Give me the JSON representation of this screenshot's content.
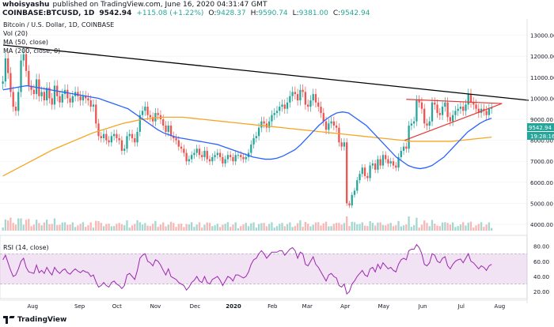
{
  "header": {
    "publisher": "whoisyashu",
    "published_text": "published on TradingView.com, June 16, 2020 04:31:47 GMT",
    "symbol": "COINBASE:BTCUSD, 1D",
    "price": "9542.94",
    "change": "+115.08 (+1.22%)",
    "open_label": "O:",
    "open": "9428.37",
    "high_label": "H:",
    "high": "9590.74",
    "low_label": "L:",
    "low": "9381.00",
    "close_label": "C:",
    "close": "9542.94"
  },
  "legend": {
    "title": "Bitcoin / U.S. Dollar, 1D, COINBASE",
    "vol": "Vol (20)",
    "ma50": "MA (50, close)",
    "ma200": "MA (200, close, 0)"
  },
  "price_tag": "9542.94",
  "time_tag": "19:28:16",
  "rsi_label": "RSI (14, close)",
  "footer": {
    "brand": "TradingView"
  },
  "colors": {
    "up": "#26a69a",
    "down": "#ef5350",
    "ma50": "#2962ff",
    "ma200": "#f5a623",
    "rsi": "#9c27b0",
    "rsi_band": "#e1bee7",
    "trend": "#000000",
    "triangle": "#e53935"
  },
  "chart_data": {
    "type": "line",
    "price_axis_ticks": [
      "13000.00",
      "12000.00",
      "11000.00",
      "10000.00",
      "9000.00",
      "8000.00",
      "7000.00",
      "6000.00",
      "5000.00",
      "4000.00"
    ],
    "rsi_axis_ticks": [
      "80.00",
      "60.00",
      "40.00",
      "20.00"
    ],
    "x_ticks": [
      "Aug",
      "Sep",
      "Oct",
      "Nov",
      "Dec",
      "2020",
      "Feb",
      "Mar",
      "Apr",
      "May",
      "Jun",
      "Jul",
      "Aug"
    ],
    "ylim": [
      3700,
      13700
    ],
    "rsi_ylim": [
      15,
      90
    ],
    "closes": [
      10800,
      11900,
      11200,
      10300,
      9600,
      9400,
      10300,
      11800,
      12100,
      11300,
      10600,
      10400,
      10200,
      10900,
      10100,
      10300,
      9900,
      10500,
      10000,
      9700,
      10600,
      10100,
      9800,
      10200,
      10400,
      10000,
      9800,
      10100,
      10300,
      10100,
      9900,
      10100,
      10000,
      9900,
      9600,
      9700,
      8800,
      8200,
      8100,
      8300,
      8000,
      7900,
      8200,
      8300,
      8100,
      8000,
      7500,
      7600,
      8200,
      8300,
      8100,
      7900,
      8400,
      9200,
      9400,
      9600,
      9200,
      9100,
      8900,
      9300,
      9200,
      9000,
      8700,
      8400,
      8700,
      8200,
      8100,
      8000,
      7700,
      7600,
      7400,
      7000,
      7100,
      7300,
      7400,
      7600,
      7300,
      7200,
      7500,
      7100,
      7000,
      7200,
      7300,
      7400,
      7200,
      6900,
      7100,
      7300,
      7200,
      7000,
      7300,
      7300,
      7200,
      7100,
      7200,
      7400,
      7800,
      8100,
      8200,
      8600,
      8900,
      8800,
      8600,
      8900,
      9200,
      9300,
      9400,
      9600,
      9700,
      9500,
      9800,
      10100,
      10300,
      10200,
      9900,
      10400,
      10300,
      9700,
      9600,
      9900,
      10200,
      9800,
      9600,
      9300,
      8900,
      8500,
      8800,
      8900,
      8700,
      8600,
      7900,
      7700,
      7900,
      5000,
      4900,
      5400,
      5600,
      6100,
      6400,
      6700,
      6300,
      6200,
      6800,
      6900,
      6600,
      7100,
      6800,
      7300,
      7100,
      6900,
      7000,
      6800,
      6700,
      7200,
      7500,
      7700,
      7600,
      8700,
      8800,
      8900,
      9900,
      9800,
      9500,
      8800,
      8700,
      8900,
      9800,
      9700,
      9300,
      9200,
      9600,
      9800,
      9100,
      8900,
      9200,
      9400,
      9500,
      9600,
      9400,
      9700,
      10200,
      9800,
      9700,
      9500,
      9300,
      9500,
      9400,
      9200,
      9500,
      9543
    ],
    "ma50": [
      10400,
      10450,
      10500,
      10550,
      10600,
      10550,
      10500,
      10450,
      10400,
      10350,
      10300,
      10250,
      10200,
      10150,
      10100,
      10050,
      10000,
      9900,
      9800,
      9700,
      9600,
      9500,
      9300,
      9100,
      8900,
      8700,
      8500,
      8350,
      8250,
      8150,
      8100,
      8050,
      8000,
      7950,
      7900,
      7850,
      7800,
      7700,
      7600,
      7500,
      7400,
      7300,
      7200,
      7150,
      7100,
      7100,
      7150,
      7250,
      7400,
      7550,
      7800,
      8100,
      8400,
      8700,
      8950,
      9150,
      9300,
      9350,
      9300,
      9100,
      8900,
      8700,
      8400,
      8100,
      7800,
      7500,
      7200,
      7000,
      6800,
      6700,
      6650,
      6700,
      6800,
      7000,
      7200,
      7500,
      7800,
      8100,
      8400,
      8600,
      8800,
      8950,
      9050
    ],
    "ma200": [
      6300,
      6550,
      6800,
      7050,
      7300,
      7550,
      7750,
      7950,
      8150,
      8350,
      8500,
      8650,
      8800,
      8900,
      9000,
      9050,
      9100,
      9100,
      9100,
      9050,
      9000,
      8950,
      8900,
      8850,
      8800,
      8750,
      8700,
      8650,
      8600,
      8550,
      8500,
      8450,
      8400,
      8350,
      8300,
      8250,
      8200,
      8150,
      8100,
      8050,
      8000,
      7950,
      7950,
      7950,
      7950,
      7950,
      8000,
      8050,
      8100,
      8150
    ],
    "rsi": [
      62,
      68,
      58,
      48,
      40,
      42,
      50,
      60,
      64,
      52,
      46,
      45,
      44,
      55,
      45,
      48,
      44,
      52,
      46,
      42,
      52,
      47,
      44,
      48,
      50,
      45,
      43,
      47,
      50,
      47,
      45,
      48,
      46,
      45,
      40,
      42,
      33,
      26,
      28,
      32,
      28,
      26,
      32,
      34,
      30,
      28,
      24,
      28,
      42,
      44,
      40,
      36,
      48,
      64,
      68,
      70,
      60,
      58,
      54,
      62,
      60,
      55,
      48,
      42,
      50,
      40,
      38,
      36,
      32,
      30,
      28,
      22,
      26,
      32,
      35,
      40,
      34,
      32,
      40,
      32,
      30,
      36,
      38,
      40,
      35,
      28,
      34,
      40,
      38,
      34,
      42,
      42,
      40,
      38,
      40,
      46,
      56,
      62,
      64,
      70,
      74,
      70,
      64,
      68,
      72,
      72,
      72,
      74,
      74,
      68,
      72,
      76,
      78,
      74,
      64,
      72,
      70,
      56,
      54,
      60,
      66,
      56,
      52,
      46,
      40,
      34,
      42,
      44,
      40,
      38,
      28,
      26,
      30,
      17,
      20,
      30,
      34,
      40,
      44,
      48,
      42,
      40,
      50,
      52,
      46,
      56,
      50,
      58,
      54,
      50,
      52,
      48,
      46,
      56,
      62,
      64,
      62,
      74,
      76,
      76,
      82,
      78,
      70,
      56,
      54,
      58,
      70,
      68,
      60,
      58,
      64,
      66,
      54,
      50,
      56,
      60,
      62,
      63,
      58,
      64,
      70,
      60,
      58,
      54,
      50,
      54,
      52,
      48,
      54,
      56
    ]
  }
}
